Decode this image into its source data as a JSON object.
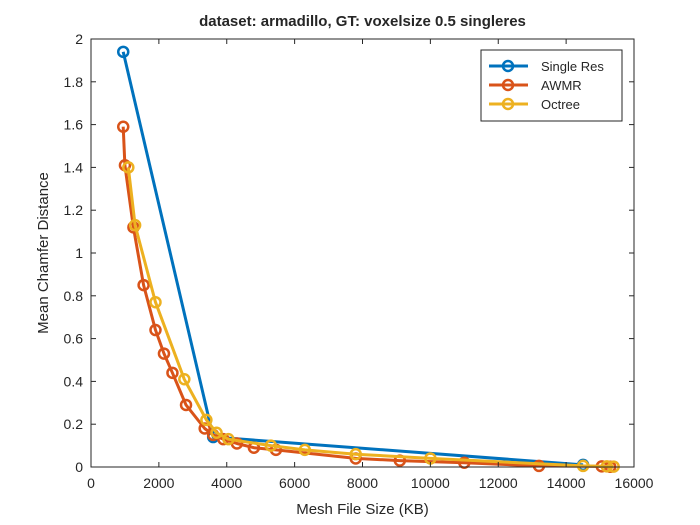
{
  "figure": {
    "background": "#ffffff"
  },
  "chart_data": {
    "type": "line",
    "title": "dataset: armadillo, GT: voxelsize 0.5 singleres",
    "xlabel": "Mesh File Size (KB)",
    "ylabel": "Mean Chamfer Distance",
    "xlim": [
      0,
      16000
    ],
    "ylim": [
      0,
      2
    ],
    "xticks": [
      0,
      2000,
      4000,
      6000,
      8000,
      10000,
      12000,
      14000,
      16000
    ],
    "yticks": [
      0,
      0.2,
      0.4,
      0.6,
      0.8,
      1,
      1.2,
      1.4,
      1.6,
      1.8,
      2
    ],
    "xtick_labels": [
      "0",
      "2000",
      "4000",
      "6000",
      "8000",
      "10000",
      "12000",
      "14000",
      "16000"
    ],
    "ytick_labels": [
      "0",
      "0.2",
      "0.4",
      "0.6",
      "0.8",
      "1",
      "1.2",
      "1.4",
      "1.6",
      "1.8",
      "2"
    ],
    "grid": false,
    "legend_position": "top-right",
    "marker": "circle",
    "series": [
      {
        "name": "Single Res",
        "color": "#0072BD",
        "x": [
          950,
          3600,
          14500
        ],
        "y": [
          1.94,
          0.14,
          0.01
        ]
      },
      {
        "name": "AWMR",
        "color": "#D95319",
        "x": [
          950,
          1000,
          1250,
          1550,
          1900,
          2150,
          2400,
          2800,
          3350,
          3600,
          3900,
          4300,
          4800,
          5450,
          7800,
          9100,
          11000,
          13200,
          15050,
          15300
        ],
        "y": [
          1.59,
          1.41,
          1.12,
          0.85,
          0.64,
          0.53,
          0.44,
          0.29,
          0.18,
          0.15,
          0.13,
          0.11,
          0.09,
          0.08,
          0.04,
          0.03,
          0.02,
          0.005,
          0.003,
          0.001
        ]
      },
      {
        "name": "Octree",
        "color": "#EDB120",
        "x": [
          1100,
          1300,
          1900,
          2750,
          3400,
          3700,
          4050,
          5300,
          6300,
          7800,
          10000,
          14500,
          15200,
          15400
        ],
        "y": [
          1.4,
          1.13,
          0.77,
          0.41,
          0.22,
          0.16,
          0.13,
          0.1,
          0.08,
          0.06,
          0.04,
          0.005,
          0.003,
          0.002
        ]
      }
    ]
  }
}
